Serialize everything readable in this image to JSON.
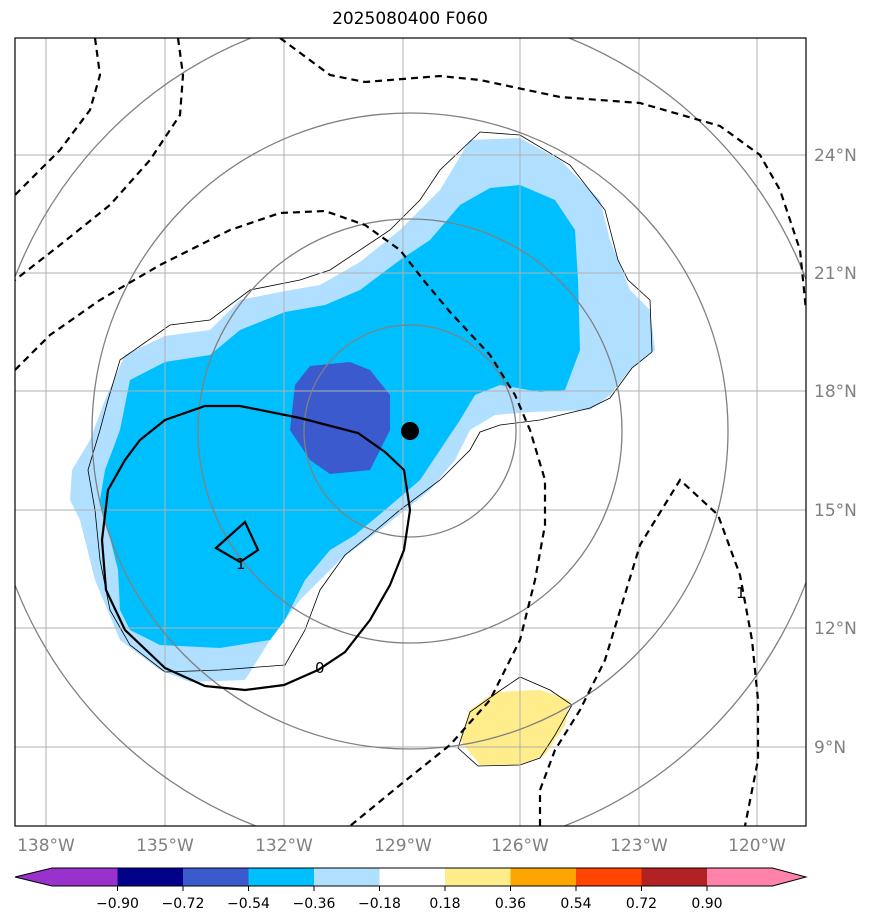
{
  "title": "2025080400 F060",
  "map": {
    "lon_labels": [
      "138°W",
      "135°W",
      "132°W",
      "129°W",
      "126°W",
      "123°W",
      "120°W"
    ],
    "lat_labels": [
      "24°N",
      "21°N",
      "18°N",
      "15°N",
      "12°N",
      "9°N"
    ],
    "contour_labels": {
      "solid_one": "1",
      "solid_zero": "0",
      "dashed_one": "1"
    },
    "center_marker": {
      "lon": -128.8,
      "lat": 17.0
    }
  },
  "colorbar": {
    "ticks": [
      "−0.90",
      "−0.72",
      "−0.54",
      "−0.36",
      "−0.18",
      "0.18",
      "0.36",
      "0.54",
      "0.72",
      "0.90"
    ],
    "colors": [
      "#9932cc",
      "#00008b",
      "#3a5acd",
      "#00bfff",
      "#b0dfff",
      "#ffffff",
      "#ffec8b",
      "#ffa500",
      "#ff4500",
      "#b22222",
      "#ff82ab"
    ]
  },
  "colors": {
    "light_blue": "#b0dfff",
    "deep_sky_blue": "#00bfff",
    "royal_blue": "#3a5acd",
    "light_yellow": "#ffec8b",
    "grid": "#b0b0b0",
    "range_rings": "#808080"
  }
}
